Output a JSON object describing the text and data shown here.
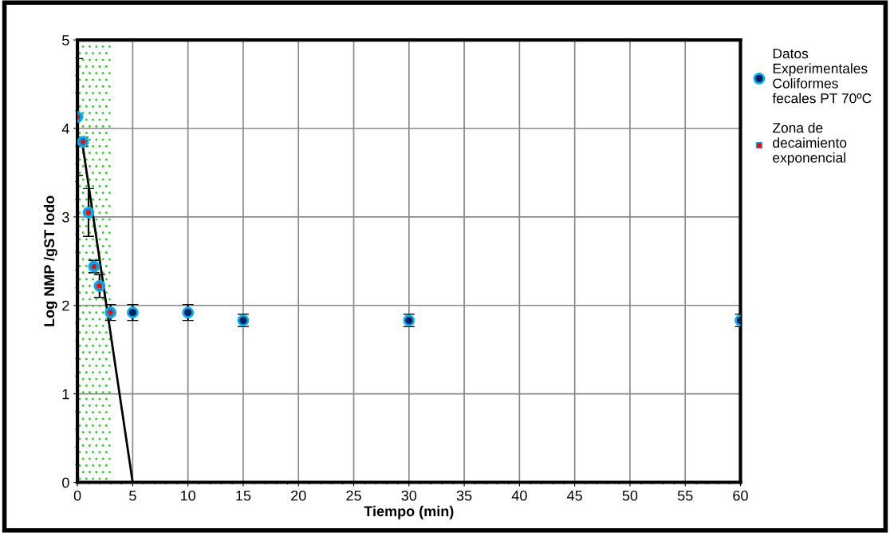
{
  "chart_data": {
    "type": "scatter",
    "xlabel": "Tiempo (min)",
    "ylabel": "Log NMP /gST lodo",
    "xlim": [
      0,
      60
    ],
    "xticks": [
      0,
      5,
      10,
      15,
      20,
      25,
      30,
      35,
      40,
      45,
      50,
      55,
      60
    ],
    "ylim": [
      0,
      5
    ],
    "yticks": [
      0,
      1,
      2,
      3,
      4,
      5
    ],
    "grid": true,
    "legend": "right",
    "series": [
      {
        "name": "Datos Experimentales Coliformes fecales PT 70ºC",
        "marker": "circle",
        "color": "#002060",
        "x": [
          0,
          0.5,
          1,
          1.5,
          2,
          3,
          5,
          10,
          15,
          30,
          60
        ],
        "values": [
          4.13,
          3.85,
          3.05,
          2.44,
          2.22,
          1.92,
          1.92,
          1.92,
          1.83,
          1.83,
          1.83
        ],
        "errors": [
          0.66,
          0.05,
          0.27,
          0.07,
          0.13,
          0.09,
          0.09,
          0.09,
          0.07,
          0.07,
          0.07
        ]
      },
      {
        "name": "Zona de decaimiento exponencial",
        "marker": "square",
        "color": "#ff0000",
        "x": [
          0,
          0.5,
          1,
          1.5,
          2,
          3
        ],
        "values": [
          4.13,
          3.85,
          3.05,
          2.44,
          2.22,
          1.92
        ]
      },
      {
        "type": "line",
        "color": "#000000",
        "line_style": "solid",
        "x": [
          0.4,
          5
        ],
        "values": [
          3.87,
          0
        ]
      }
    ],
    "bands": [
      {
        "axis": "x",
        "from": 0,
        "to": 3,
        "color": "#33cc33"
      }
    ]
  }
}
